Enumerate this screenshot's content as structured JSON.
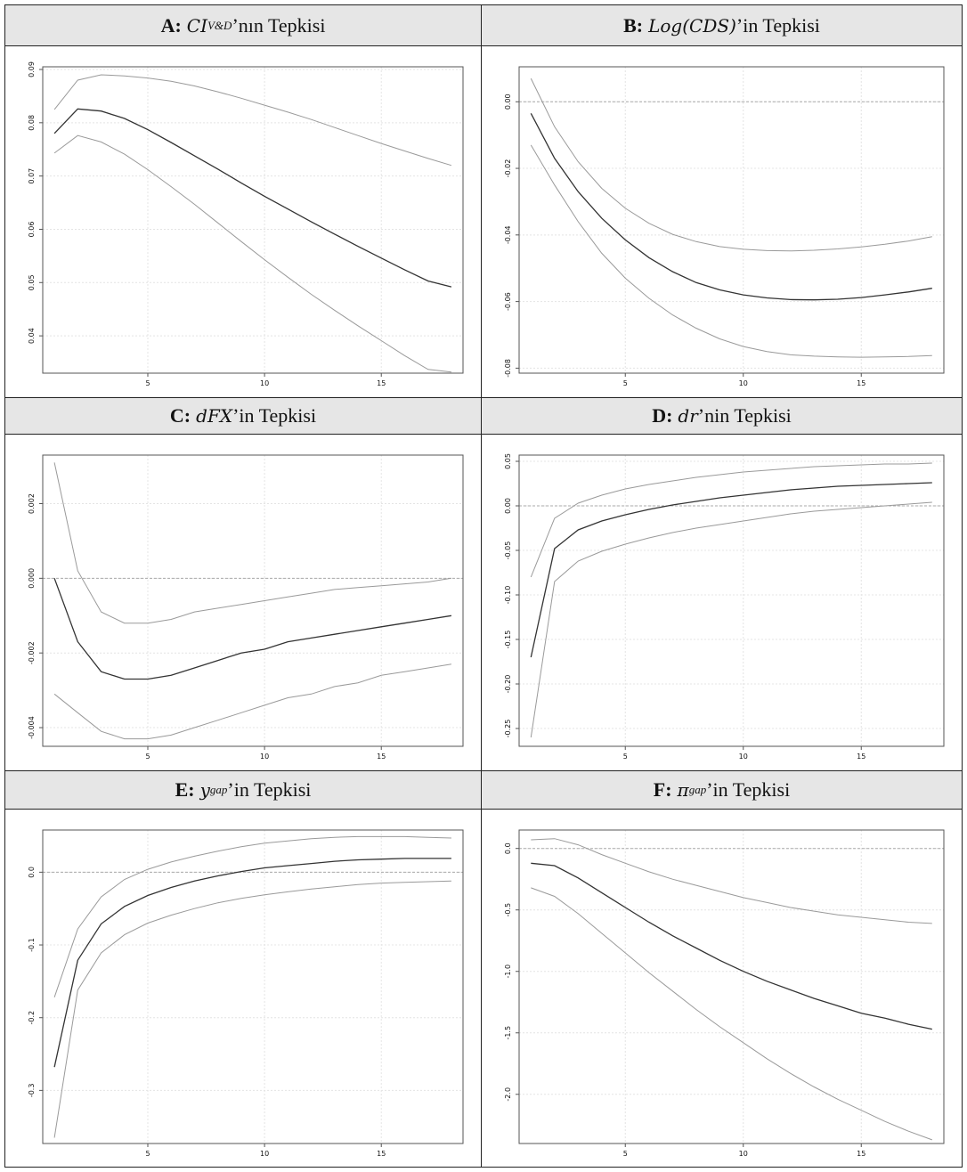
{
  "panels": [
    {
      "label": "A:",
      "math_main": "CI",
      "math_sub": "V&D",
      "suffix": "’nın Tepkisi",
      "chart_data": {
        "type": "line",
        "xlim": [
          0.5,
          18.5
        ],
        "ylim": [
          0.033,
          0.0905
        ],
        "xticks": [
          5,
          10,
          15
        ],
        "yticks": [
          0.04,
          0.05,
          0.06,
          0.07,
          0.08,
          0.09
        ],
        "ytick_labels": [
          "0.04",
          "0.05",
          "0.06",
          "0.07",
          "0.08",
          "0.09"
        ],
        "grid": true,
        "zero_line": false,
        "x": [
          1,
          2,
          3,
          4,
          5,
          6,
          7,
          8,
          9,
          10,
          11,
          12,
          13,
          14,
          15,
          16,
          17,
          18
        ],
        "series": [
          {
            "role": "upper",
            "color": "#9a9a9a",
            "values": [
              0.0825,
              0.088,
              0.089,
              0.0888,
              0.0884,
              0.0878,
              0.0869,
              0.0858,
              0.0846,
              0.0833,
              0.082,
              0.0806,
              0.0791,
              0.0776,
              0.0761,
              0.0747,
              0.0733,
              0.072
            ]
          },
          {
            "role": "irf",
            "color": "#333333",
            "values": [
              0.078,
              0.0826,
              0.0822,
              0.0808,
              0.0787,
              0.0763,
              0.0738,
              0.0713,
              0.0687,
              0.0662,
              0.0638,
              0.0614,
              0.0591,
              0.0568,
              0.0546,
              0.0524,
              0.0503,
              0.0492
            ]
          },
          {
            "role": "lower",
            "color": "#9a9a9a",
            "values": [
              0.0743,
              0.0776,
              0.0764,
              0.0741,
              0.0712,
              0.068,
              0.0647,
              0.0612,
              0.0577,
              0.0543,
              0.051,
              0.0478,
              0.0448,
              0.0419,
              0.0391,
              0.0363,
              0.0337,
              0.0332
            ]
          }
        ]
      }
    },
    {
      "label": "B:",
      "math_main": "Log(CDS)",
      "math_sub": "",
      "suffix": "’in Tepkisi",
      "chart_data": {
        "type": "line",
        "xlim": [
          0.5,
          18.5
        ],
        "ylim": [
          -0.0815,
          0.0105
        ],
        "xticks": [
          5,
          10,
          15
        ],
        "yticks": [
          -0.08,
          -0.06,
          -0.04,
          -0.02,
          0.0
        ],
        "ytick_labels": [
          "-0.08",
          "-0.06",
          "-0.04",
          "-0.02",
          "0.00"
        ],
        "grid": true,
        "zero_line": true,
        "x": [
          1,
          2,
          3,
          4,
          5,
          6,
          7,
          8,
          9,
          10,
          11,
          12,
          13,
          14,
          15,
          16,
          17,
          18
        ],
        "series": [
          {
            "role": "upper",
            "color": "#9a9a9a",
            "values": [
              0.007,
              -0.0075,
              -0.018,
              -0.026,
              -0.032,
              -0.0365,
              -0.0398,
              -0.042,
              -0.0435,
              -0.0443,
              -0.0447,
              -0.0448,
              -0.0446,
              -0.0442,
              -0.0436,
              -0.0428,
              -0.0418,
              -0.0405
            ]
          },
          {
            "role": "irf",
            "color": "#333333",
            "values": [
              -0.0035,
              -0.017,
              -0.027,
              -0.035,
              -0.0415,
              -0.0468,
              -0.051,
              -0.0543,
              -0.0565,
              -0.058,
              -0.0589,
              -0.0594,
              -0.0595,
              -0.0593,
              -0.0588,
              -0.058,
              -0.0571,
              -0.056
            ]
          },
          {
            "role": "lower",
            "color": "#9a9a9a",
            "values": [
              -0.013,
              -0.025,
              -0.036,
              -0.0455,
              -0.053,
              -0.059,
              -0.064,
              -0.068,
              -0.0712,
              -0.0735,
              -0.075,
              -0.076,
              -0.0764,
              -0.0766,
              -0.0767,
              -0.0766,
              -0.0765,
              -0.0762
            ]
          }
        ]
      }
    },
    {
      "label": "C:",
      "math_main": "dFX",
      "math_sub": "",
      "suffix": "’in Tepkisi",
      "chart_data": {
        "type": "line",
        "xlim": [
          0.5,
          18.5
        ],
        "ylim": [
          -0.0045,
          0.0033
        ],
        "xticks": [
          5,
          10,
          15
        ],
        "yticks": [
          -0.004,
          -0.002,
          0.0,
          0.002
        ],
        "ytick_labels": [
          "-0.004",
          "-0.002",
          "0.000",
          "0.002"
        ],
        "grid": true,
        "zero_line": true,
        "x": [
          1,
          2,
          3,
          4,
          5,
          6,
          7,
          8,
          9,
          10,
          11,
          12,
          13,
          14,
          15,
          16,
          17,
          18
        ],
        "series": [
          {
            "role": "upper",
            "color": "#9a9a9a",
            "values": [
              0.0031,
              0.0002,
              -0.0009,
              -0.0012,
              -0.0012,
              -0.0011,
              -0.0009,
              -0.0008,
              -0.0007,
              -0.0006,
              -0.0005,
              -0.0004,
              -0.0003,
              -0.00025,
              -0.0002,
              -0.00015,
              -0.0001,
              0.0
            ]
          },
          {
            "role": "irf",
            "color": "#333333",
            "values": [
              0.0,
              -0.0017,
              -0.0025,
              -0.0027,
              -0.0027,
              -0.0026,
              -0.0024,
              -0.0022,
              -0.002,
              -0.0019,
              -0.0017,
              -0.0016,
              -0.0015,
              -0.0014,
              -0.0013,
              -0.0012,
              -0.0011,
              -0.001
            ]
          },
          {
            "role": "lower",
            "color": "#9a9a9a",
            "values": [
              -0.0031,
              -0.0036,
              -0.0041,
              -0.0043,
              -0.0043,
              -0.0042,
              -0.004,
              -0.0038,
              -0.0036,
              -0.0034,
              -0.0032,
              -0.0031,
              -0.0029,
              -0.0028,
              -0.0026,
              -0.0025,
              -0.0024,
              -0.0023
            ]
          }
        ]
      }
    },
    {
      "label": "D:",
      "math_main": "dr",
      "math_sub": "",
      "suffix": "’nin Tepkisi",
      "chart_data": {
        "type": "line",
        "xlim": [
          0.5,
          18.5
        ],
        "ylim": [
          -0.27,
          0.057
        ],
        "xticks": [
          5,
          10,
          15
        ],
        "yticks": [
          -0.25,
          -0.2,
          -0.15,
          -0.1,
          -0.05,
          0.0,
          0.05
        ],
        "ytick_labels": [
          "-0.25",
          "-0.20",
          "-0.15",
          "-0.10",
          "-0.05",
          "0.00",
          "0.05"
        ],
        "grid": true,
        "zero_line": true,
        "x": [
          1,
          2,
          3,
          4,
          5,
          6,
          7,
          8,
          9,
          10,
          11,
          12,
          13,
          14,
          15,
          16,
          17,
          18
        ],
        "series": [
          {
            "role": "upper",
            "color": "#9a9a9a",
            "values": [
              -0.08,
              -0.014,
              0.003,
              0.012,
              0.019,
              0.024,
              0.028,
              0.032,
              0.035,
              0.038,
              0.04,
              0.042,
              0.044,
              0.045,
              0.046,
              0.047,
              0.047,
              0.048
            ]
          },
          {
            "role": "irf",
            "color": "#333333",
            "values": [
              -0.17,
              -0.048,
              -0.027,
              -0.017,
              -0.01,
              -0.004,
              0.001,
              0.005,
              0.009,
              0.012,
              0.015,
              0.018,
              0.02,
              0.022,
              0.023,
              0.024,
              0.025,
              0.026
            ]
          },
          {
            "role": "lower",
            "color": "#9a9a9a",
            "values": [
              -0.26,
              -0.085,
              -0.062,
              -0.051,
              -0.043,
              -0.036,
              -0.03,
              -0.025,
              -0.021,
              -0.017,
              -0.013,
              -0.009,
              -0.006,
              -0.004,
              -0.002,
              0.0,
              0.002,
              0.004
            ]
          }
        ]
      }
    },
    {
      "label": "E:",
      "math_main": "y",
      "math_sub": "gap",
      "suffix": "’in Tepkisi",
      "chart_data": {
        "type": "line",
        "xlim": [
          0.5,
          18.5
        ],
        "ylim": [
          -0.373,
          0.058
        ],
        "xticks": [
          5,
          10,
          15
        ],
        "yticks": [
          -0.3,
          -0.2,
          -0.1,
          0.0
        ],
        "ytick_labels": [
          "-0.3",
          "-0.2",
          "-0.1",
          "0.0"
        ],
        "grid": true,
        "zero_line": true,
        "x": [
          1,
          2,
          3,
          4,
          5,
          6,
          7,
          8,
          9,
          10,
          11,
          12,
          13,
          14,
          15,
          16,
          17,
          18
        ],
        "series": [
          {
            "role": "upper",
            "color": "#9a9a9a",
            "values": [
              -0.172,
              -0.078,
              -0.034,
              -0.01,
              0.004,
              0.014,
              0.022,
              0.029,
              0.035,
              0.04,
              0.043,
              0.046,
              0.048,
              0.049,
              0.049,
              0.049,
              0.048,
              0.047
            ]
          },
          {
            "role": "irf",
            "color": "#333333",
            "values": [
              -0.268,
              -0.121,
              -0.071,
              -0.047,
              -0.032,
              -0.021,
              -0.012,
              -0.005,
              0.001,
              0.006,
              0.009,
              0.012,
              0.015,
              0.017,
              0.018,
              0.019,
              0.019,
              0.019
            ]
          },
          {
            "role": "lower",
            "color": "#9a9a9a",
            "values": [
              -0.365,
              -0.162,
              -0.111,
              -0.086,
              -0.07,
              -0.059,
              -0.05,
              -0.042,
              -0.036,
              -0.031,
              -0.027,
              -0.023,
              -0.02,
              -0.017,
              -0.015,
              -0.014,
              -0.013,
              -0.012
            ]
          }
        ]
      }
    },
    {
      "label": "F:",
      "math_main": "π",
      "math_sub": "gap",
      "suffix": "’in Tepkisi",
      "chart_data": {
        "type": "line",
        "xlim": [
          0.5,
          18.5
        ],
        "ylim": [
          -2.4,
          0.15
        ],
        "xticks": [
          5,
          10,
          15
        ],
        "yticks": [
          -2.0,
          -1.5,
          -1.0,
          -0.5,
          0.0
        ],
        "ytick_labels": [
          "-2.0",
          "-1.5",
          "-1.0",
          "-0.5",
          "0.0"
        ],
        "grid": true,
        "zero_line": true,
        "x": [
          1,
          2,
          3,
          4,
          5,
          6,
          7,
          8,
          9,
          10,
          11,
          12,
          13,
          14,
          15,
          16,
          17,
          18
        ],
        "series": [
          {
            "role": "upper",
            "color": "#9a9a9a",
            "values": [
              0.07,
              0.08,
              0.03,
              -0.05,
              -0.12,
              -0.19,
              -0.25,
              -0.3,
              -0.35,
              -0.4,
              -0.44,
              -0.48,
              -0.51,
              -0.54,
              -0.56,
              -0.58,
              -0.6,
              -0.61
            ]
          },
          {
            "role": "irf",
            "color": "#333333",
            "values": [
              -0.12,
              -0.14,
              -0.24,
              -0.36,
              -0.48,
              -0.6,
              -0.71,
              -0.81,
              -0.91,
              -1.0,
              -1.08,
              -1.15,
              -1.22,
              -1.28,
              -1.34,
              -1.38,
              -1.43,
              -1.47
            ]
          },
          {
            "role": "lower",
            "color": "#9a9a9a",
            "values": [
              -0.32,
              -0.39,
              -0.53,
              -0.69,
              -0.85,
              -1.01,
              -1.16,
              -1.31,
              -1.45,
              -1.58,
              -1.71,
              -1.83,
              -1.94,
              -2.04,
              -2.13,
              -2.22,
              -2.3,
              -2.37
            ]
          }
        ]
      }
    }
  ]
}
